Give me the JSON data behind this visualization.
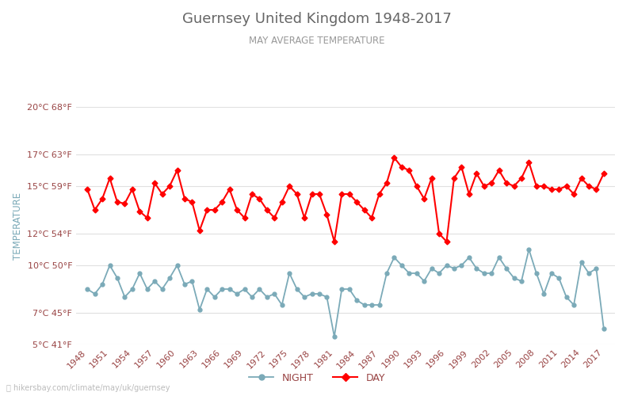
{
  "title": "Guernsey United Kingdom 1948-2017",
  "subtitle": "MAY AVERAGE TEMPERATURE",
  "ylabel": "TEMPERATURE",
  "watermark": "ⓘ hikersbay.com/climate/may/uk/guernsey",
  "years": [
    1948,
    1949,
    1950,
    1951,
    1952,
    1953,
    1954,
    1955,
    1956,
    1957,
    1958,
    1959,
    1960,
    1961,
    1962,
    1963,
    1964,
    1965,
    1966,
    1967,
    1968,
    1969,
    1970,
    1971,
    1972,
    1973,
    1974,
    1975,
    1976,
    1977,
    1978,
    1979,
    1980,
    1981,
    1982,
    1983,
    1984,
    1985,
    1986,
    1987,
    1988,
    1989,
    1990,
    1991,
    1992,
    1993,
    1994,
    1995,
    1996,
    1997,
    1998,
    1999,
    2000,
    2001,
    2002,
    2003,
    2004,
    2005,
    2006,
    2007,
    2008,
    2009,
    2010,
    2011,
    2012,
    2013,
    2014,
    2015,
    2016,
    2017
  ],
  "day_temps": [
    14.8,
    13.5,
    14.2,
    15.5,
    14.0,
    13.9,
    14.8,
    13.4,
    13.0,
    15.2,
    14.5,
    15.0,
    16.0,
    14.2,
    14.0,
    12.2,
    13.5,
    13.5,
    14.0,
    14.8,
    13.5,
    13.0,
    14.5,
    14.2,
    13.5,
    13.0,
    14.0,
    15.0,
    14.5,
    13.0,
    14.5,
    14.5,
    13.2,
    11.5,
    14.5,
    14.5,
    14.0,
    13.5,
    13.0,
    14.5,
    15.2,
    16.8,
    16.2,
    16.0,
    15.0,
    14.2,
    15.5,
    12.0,
    11.5,
    15.5,
    16.2,
    14.5,
    15.8,
    15.0,
    15.2,
    16.0,
    15.2,
    15.0,
    15.5,
    16.5,
    15.0,
    15.0,
    14.8,
    14.8,
    15.0,
    14.5,
    15.5,
    15.0,
    14.8,
    15.8
  ],
  "night_temps": [
    8.5,
    8.2,
    8.8,
    10.0,
    9.2,
    8.0,
    8.5,
    9.5,
    8.5,
    9.0,
    8.5,
    9.2,
    10.0,
    8.8,
    9.0,
    7.2,
    8.5,
    8.0,
    8.5,
    8.5,
    8.2,
    8.5,
    8.0,
    8.5,
    8.0,
    8.2,
    7.5,
    9.5,
    8.5,
    8.0,
    8.2,
    8.2,
    8.0,
    5.5,
    8.5,
    8.5,
    7.8,
    7.5,
    7.5,
    7.5,
    9.5,
    10.5,
    10.0,
    9.5,
    9.5,
    9.0,
    9.8,
    9.5,
    10.0,
    9.8,
    10.0,
    10.5,
    9.8,
    9.5,
    9.5,
    10.5,
    9.8,
    9.2,
    9.0,
    11.0,
    9.5,
    8.2,
    9.5,
    9.2,
    8.0,
    7.5,
    10.2,
    9.5,
    9.8,
    6.0
  ],
  "day_color": "#ff0000",
  "night_color": "#7baab8",
  "title_color": "#666666",
  "subtitle_color": "#999999",
  "ylabel_color": "#7baab8",
  "tick_color": "#994444",
  "bg_color": "#ffffff",
  "grid_color": "#e0e0e0",
  "ylim_min": 5,
  "ylim_max": 20,
  "yticks_c": [
    5,
    7,
    10,
    12,
    15,
    17,
    20
  ],
  "yticks_f": [
    41,
    45,
    50,
    54,
    59,
    63,
    68
  ],
  "legend_night": "NIGHT",
  "legend_day": "DAY"
}
